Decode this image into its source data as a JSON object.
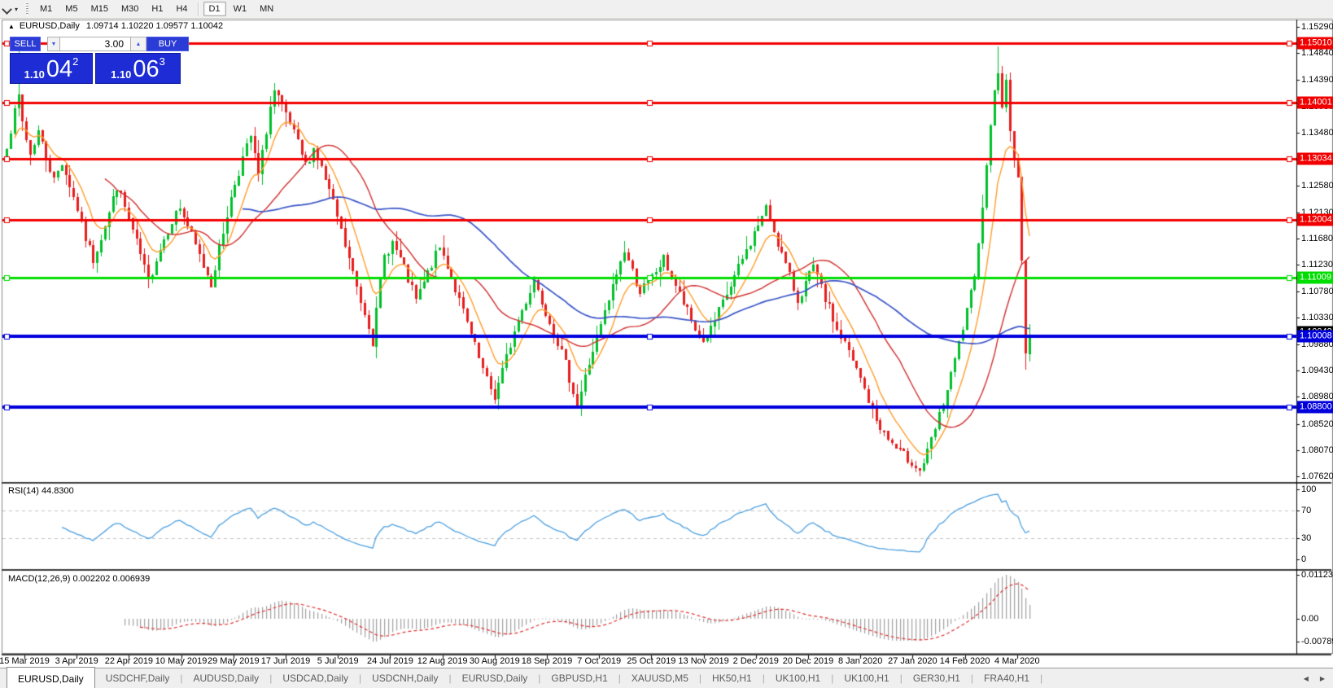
{
  "toolbar": {
    "timeframes": [
      {
        "label": "M1",
        "active": false
      },
      {
        "label": "M5",
        "active": false
      },
      {
        "label": "M15",
        "active": false
      },
      {
        "label": "M30",
        "active": false
      },
      {
        "label": "H1",
        "active": false
      },
      {
        "label": "H4",
        "active": false
      },
      {
        "label": "D1",
        "active": true
      },
      {
        "label": "W1",
        "active": false
      },
      {
        "label": "MN",
        "active": false
      }
    ]
  },
  "header": {
    "collapse_icon": "▲",
    "symbol": "EURUSD,Daily",
    "ohlc": "1.09714 1.10220 1.09577 1.10042"
  },
  "trade_panel": {
    "sell_label": "SELL",
    "buy_label": "BUY",
    "spread_value": "3.00",
    "step_down_icon": "▼",
    "step_up_icon": "▲",
    "sell_price_prefix": "1.10",
    "sell_price_big": "04",
    "sell_price_sup": "2",
    "buy_price_prefix": "1.10",
    "buy_price_big": "06",
    "buy_price_sup": "3"
  },
  "indicator_labels": {
    "rsi": "RSI(14) 44.8300",
    "macd": "MACD(12,26,9) 0.002202 0.006939"
  },
  "tabs": {
    "items": [
      {
        "label": "EURUSD,Daily",
        "active": true
      },
      {
        "label": "USDCHF,Daily",
        "active": false
      },
      {
        "label": "AUDUSD,Daily",
        "active": false
      },
      {
        "label": "USDCAD,Daily",
        "active": false
      },
      {
        "label": "USDCNH,Daily",
        "active": false
      },
      {
        "label": "EURUSD,Daily",
        "active": false
      },
      {
        "label": "GBPUSD,H1",
        "active": false
      },
      {
        "label": "XAUUSD,M5",
        "active": false
      },
      {
        "label": "HK50,H1",
        "active": false
      },
      {
        "label": "UK100,H1",
        "active": false
      },
      {
        "label": "UK100,H1",
        "active": false
      },
      {
        "label": "GER30,H1",
        "active": false
      },
      {
        "label": "FRA40,H1",
        "active": false
      }
    ],
    "scroll_left_icon": "◀",
    "scroll_right_icon": "▶"
  },
  "chart_data": {
    "type": "candlestick",
    "symbol": "EURUSD",
    "timeframe": "Daily",
    "current_ohlc": {
      "open": 1.09714,
      "high": 1.1022,
      "low": 1.09577,
      "close": 1.10042
    },
    "y_axis_ticks": [
      "1.15290",
      "1.14840",
      "1.14390",
      "1.13930",
      "1.13480",
      "1.13030",
      "1.12580",
      "1.12130",
      "1.11680",
      "1.11230",
      "1.10780",
      "1.10330",
      "1.09880",
      "1.09430",
      "1.08980",
      "1.08520",
      "1.08070",
      "1.07620"
    ],
    "x_axis_labels": [
      "15 Mar 2019",
      "3 Apr 2019",
      "22 Apr 2019",
      "10 May 2019",
      "29 May 2019",
      "17 Jun 2019",
      "5 Jul 2019",
      "24 Jul 2019",
      "12 Aug 2019",
      "30 Aug 2019",
      "18 Sep 2019",
      "7 Oct 2019",
      "25 Oct 2019",
      "13 Nov 2019",
      "2 Dec 2019",
      "20 Dec 2019",
      "8 Jan 2020",
      "27 Jan 2020",
      "14 Feb 2020",
      "4 Mar 2020"
    ],
    "hlines": [
      {
        "price": 1.1501,
        "label": "1.15010",
        "color": "#f20000",
        "thickness": 3
      },
      {
        "price": 1.14001,
        "label": "1.14001",
        "color": "#f20000",
        "thickness": 3
      },
      {
        "price": 1.13034,
        "label": "1.13034",
        "color": "#f20000",
        "thickness": 3
      },
      {
        "price": 1.12004,
        "label": "1.12004",
        "color": "#f20000",
        "thickness": 3
      },
      {
        "price": 1.11009,
        "label": "1.11009",
        "color": "#00dd00",
        "thickness": 3
      },
      {
        "price": 1.10008,
        "label": "1.10008",
        "color": "#0000dd",
        "thickness": 4
      },
      {
        "price": 1.088,
        "label": "1.08800",
        "color": "#0000dd",
        "thickness": 4
      }
    ],
    "bid_line": {
      "price": 1.10042,
      "label": "1.10042",
      "color": "#c4c4c4"
    },
    "candles": {
      "days": 261,
      "up_color": "#00c02a",
      "down_color": "#e81d1d",
      "anchors": [
        [
          0,
          1.133
        ],
        [
          1,
          1.1355
        ],
        [
          2,
          1.1382
        ],
        [
          3,
          1.141
        ],
        [
          4,
          1.1368
        ],
        [
          5,
          1.1338
        ],
        [
          6,
          1.1312
        ],
        [
          8,
          1.1352
        ],
        [
          10,
          1.1308
        ],
        [
          12,
          1.1268
        ],
        [
          14,
          1.1298
        ],
        [
          16,
          1.1258
        ],
        [
          18,
          1.1218
        ],
        [
          20,
          1.1168
        ],
        [
          22,
          1.1132
        ],
        [
          24,
          1.1172
        ],
        [
          26,
          1.1212
        ],
        [
          28,
          1.1258
        ],
        [
          30,
          1.122
        ],
        [
          32,
          1.118
        ],
        [
          34,
          1.114
        ],
        [
          36,
          1.1092
        ],
        [
          38,
          1.1135
        ],
        [
          40,
          1.1168
        ],
        [
          42,
          1.12
        ],
        [
          44,
          1.1222
        ],
        [
          46,
          1.119
        ],
        [
          48,
          1.1155
        ],
        [
          50,
          1.1122
        ],
        [
          52,
          1.1092
        ],
        [
          54,
          1.115
        ],
        [
          56,
          1.121
        ],
        [
          58,
          1.1262
        ],
        [
          60,
          1.1305
        ],
        [
          62,
          1.1342
        ],
        [
          63,
          1.1308
        ],
        [
          64,
          1.1275
        ],
        [
          65,
          1.1312
        ],
        [
          66,
          1.1352
        ],
        [
          67,
          1.1392
        ],
        [
          68,
          1.1418
        ],
        [
          70,
          1.1392
        ],
        [
          72,
          1.1362
        ],
        [
          74,
          1.1328
        ],
        [
          76,
          1.1292
        ],
        [
          78,
          1.1322
        ],
        [
          80,
          1.1288
        ],
        [
          82,
          1.1248
        ],
        [
          84,
          1.1205
        ],
        [
          86,
          1.1155
        ],
        [
          88,
          1.1108
        ],
        [
          90,
          1.1062
        ],
        [
          92,
          1.1022
        ],
        [
          93,
          1.0992
        ],
        [
          94,
          1.1042
        ],
        [
          95,
          1.1092
        ],
        [
          96,
          1.1138
        ],
        [
          98,
          1.1162
        ],
        [
          100,
          1.1132
        ],
        [
          102,
          1.1098
        ],
        [
          104,
          1.1062
        ],
        [
          106,
          1.1092
        ],
        [
          108,
          1.1125
        ],
        [
          110,
          1.1152
        ],
        [
          112,
          1.1122
        ],
        [
          114,
          1.1082
        ],
        [
          116,
          1.1042
        ],
        [
          118,
          1.1002
        ],
        [
          120,
          1.0962
        ],
        [
          122,
          1.0925
        ],
        [
          124,
          1.0898
        ],
        [
          126,
          1.0942
        ],
        [
          128,
          1.0988
        ],
        [
          130,
          1.1028
        ],
        [
          132,
          1.1062
        ],
        [
          134,
          1.1098
        ],
        [
          136,
          1.1062
        ],
        [
          138,
          1.1028
        ],
        [
          140,
          1.0992
        ],
        [
          142,
          1.0952
        ],
        [
          144,
          1.0908
        ],
        [
          145,
          1.0882
        ],
        [
          147,
          1.0932
        ],
        [
          149,
          1.0978
        ],
        [
          151,
          1.1018
        ],
        [
          153,
          1.1062
        ],
        [
          155,
          1.1108
        ],
        [
          157,
          1.1148
        ],
        [
          159,
          1.1112
        ],
        [
          161,
          1.1078
        ],
        [
          163,
          1.1092
        ],
        [
          165,
          1.1112
        ],
        [
          167,
          1.1132
        ],
        [
          169,
          1.1102
        ],
        [
          171,
          1.1072
        ],
        [
          173,
          1.1042
        ],
        [
          175,
          1.1012
        ],
        [
          177,
          1.0992
        ],
        [
          179,
          1.1012
        ],
        [
          181,
          1.1042
        ],
        [
          183,
          1.1072
        ],
        [
          185,
          1.1102
        ],
        [
          187,
          1.1132
        ],
        [
          189,
          1.1162
        ],
        [
          191,
          1.1192
        ],
        [
          193,
          1.1218
        ],
        [
          195,
          1.1182
        ],
        [
          197,
          1.1142
        ],
        [
          199,
          1.1102
        ],
        [
          201,
          1.1062
        ],
        [
          203,
          1.1092
        ],
        [
          205,
          1.1118
        ],
        [
          207,
          1.1082
        ],
        [
          209,
          1.1048
        ],
        [
          211,
          1.1012
        ],
        [
          213,
          1.0988
        ],
        [
          215,
          1.0958
        ],
        [
          217,
          1.0928
        ],
        [
          219,
          1.0892
        ],
        [
          221,
          1.0858
        ],
        [
          224,
          1.0825
        ],
        [
          227,
          1.0802
        ],
        [
          230,
          1.0788
        ],
        [
          232,
          1.0772
        ],
        [
          234,
          1.0802
        ],
        [
          236,
          1.0842
        ],
        [
          238,
          1.0888
        ],
        [
          240,
          1.0932
        ],
        [
          242,
          1.0988
        ],
        [
          244,
          1.1042
        ],
        [
          246,
          1.1102
        ],
        [
          247,
          1.1162
        ],
        [
          248,
          1.1222
        ],
        [
          249,
          1.1292
        ],
        [
          250,
          1.1362
        ],
        [
          251,
          1.1422
        ],
        [
          252,
          1.1448
        ],
        [
          253,
          1.1392
        ],
        [
          254,
          1.1438
        ],
        [
          255,
          1.1352
        ],
        [
          256,
          1.1302
        ],
        [
          257,
          1.1272
        ],
        [
          258,
          1.1132
        ],
        [
          259,
          1.0972
        ],
        [
          260,
          1.10042
        ]
      ],
      "overrides": {
        "3": {
          "h": 1.1487
        },
        "232": {
          "l": 1.0762
        },
        "252": {
          "h": 1.1495
        },
        "259": {
          "l": 1.0945
        },
        "260": {
          "o": 1.09714,
          "h": 1.1022,
          "l": 1.09577,
          "c": 1.10042
        }
      }
    },
    "ma_lines": [
      {
        "period": 9,
        "type": "ema",
        "color": "#ff9e2c"
      },
      {
        "period": 25,
        "type": "sma",
        "color": "#d23030"
      },
      {
        "period": 60,
        "type": "sma",
        "color": "#3a55c8"
      }
    ],
    "rsi": {
      "period": 14,
      "value": 44.83,
      "levels": [
        "100",
        "70",
        "30",
        "0"
      ],
      "overbought": 70,
      "oversold": 30,
      "line_color": "#4da0e0",
      "level_color": "#c4c4c4"
    },
    "macd": {
      "fast": 12,
      "slow": 26,
      "signal": 9,
      "main_value": 0.002202,
      "signal_value": 0.006939,
      "axis_ticks": [
        "0.011232",
        "0.00",
        "-0.007894"
      ],
      "hist_color": "#a2a2a2",
      "signal_color": "#e03030"
    }
  }
}
